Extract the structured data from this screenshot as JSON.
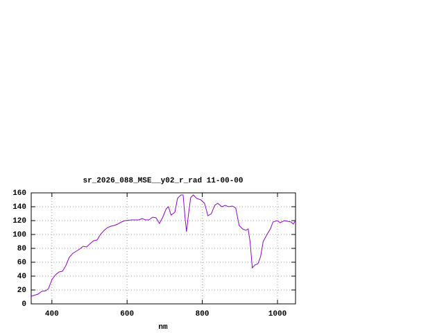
{
  "chart_data": {
    "type": "line",
    "title": "sr_2026_088_MSE__y02_r_rad 11-00-00",
    "x_label": "nm",
    "x": [
      345,
      363,
      373,
      384,
      391,
      400,
      410,
      419,
      428,
      437,
      446,
      456,
      465,
      474,
      483,
      492,
      502,
      511,
      520,
      529,
      539,
      548,
      557,
      566,
      575,
      585,
      594,
      612,
      631,
      640,
      649,
      658,
      668,
      677,
      686,
      695,
      704,
      710,
      717,
      727,
      734,
      743,
      749,
      754,
      758,
      763,
      769,
      776,
      785,
      796,
      806,
      815,
      824,
      833,
      841,
      852,
      861,
      870,
      880,
      889,
      898,
      907,
      916,
      922,
      927,
      933,
      940,
      948,
      955,
      962,
      972,
      981,
      988,
      999,
      1007,
      1018,
      1027,
      1036,
      1042,
      1048
    ],
    "series": [
      {
        "color": "#9400d3",
        "values": [
          11,
          14,
          18,
          19,
          22,
          35,
          42,
          46,
          47,
          55,
          67,
          73,
          76,
          79,
          83,
          82,
          87,
          91,
          92,
          100,
          106,
          110,
          112,
          113,
          115,
          118,
          120,
          121,
          121,
          123,
          121,
          121,
          125,
          124,
          116,
          125,
          137,
          140,
          128,
          132,
          152,
          157,
          157,
          125,
          104,
          128,
          153,
          157,
          152,
          150,
          145,
          127,
          130,
          142,
          145,
          140,
          142,
          140,
          141,
          138,
          113,
          108,
          106,
          108,
          90,
          52,
          56,
          58,
          68,
          90,
          100,
          108,
          118,
          120,
          117,
          120,
          119,
          118,
          115,
          120
        ]
      }
    ],
    "xlim": [
      345,
      1048
    ],
    "ylim": [
      0,
      160
    ],
    "xticks": [
      400,
      600,
      800,
      1000
    ],
    "yticks": [
      0,
      20,
      40,
      60,
      80,
      100,
      120,
      140,
      160
    ],
    "grid": true
  }
}
